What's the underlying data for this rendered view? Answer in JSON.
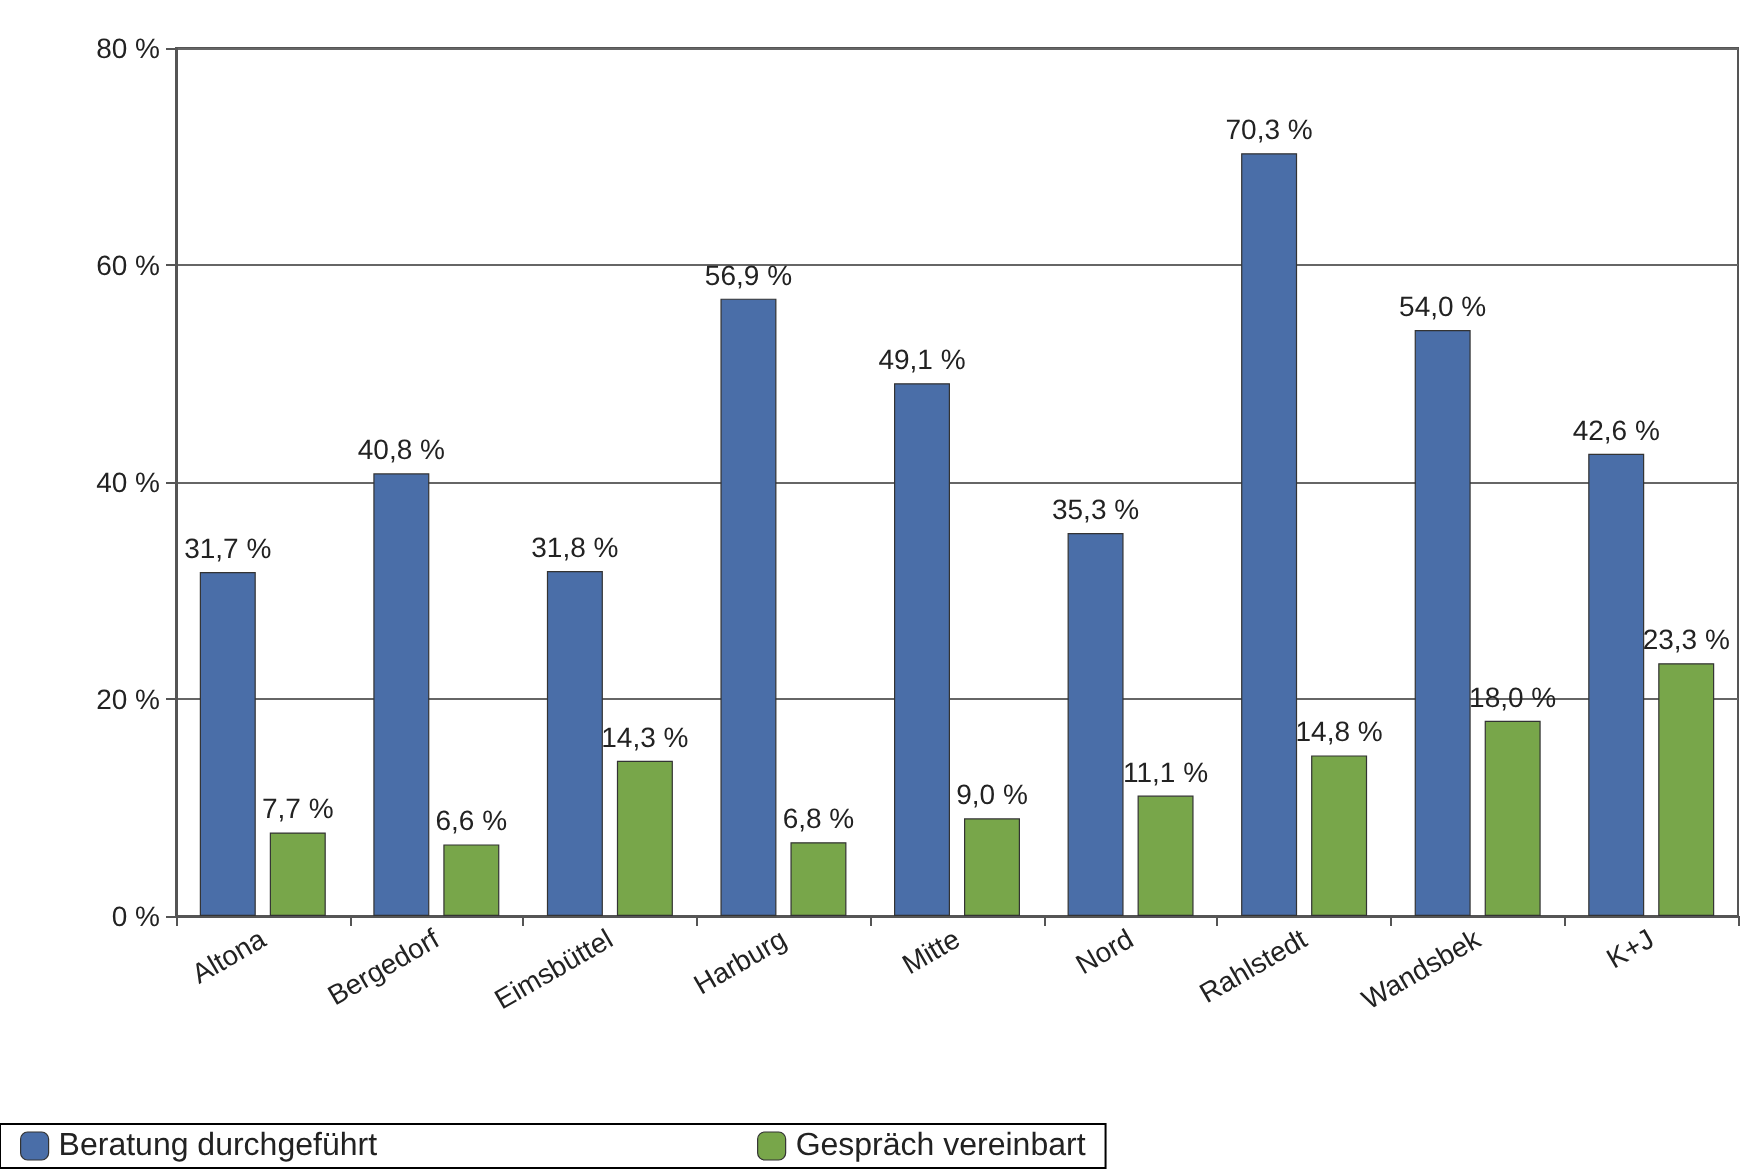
{
  "chart_data": {
    "type": "bar",
    "categories": [
      "Altona",
      "Bergedorf",
      "Eimsbüttel",
      "Harburg",
      "Mitte",
      "Nord",
      "Rahlstedt",
      "Wandsbek",
      "K+J"
    ],
    "series": [
      {
        "name": "Beratung durchgeführt",
        "color": "#4a6ea8",
        "values": [
          31.7,
          40.8,
          31.8,
          56.9,
          49.1,
          35.3,
          70.3,
          54.0,
          42.6
        ],
        "value_labels": [
          "31,7 %",
          "40,8 %",
          "31,8 %",
          "56,9 %",
          "49,1 %",
          "35,3 %",
          "70,3 %",
          "54,0 %",
          "42,6 %"
        ]
      },
      {
        "name": "Gespräch vereinbart",
        "color": "#78a64a",
        "values": [
          7.7,
          6.6,
          14.3,
          6.8,
          9.0,
          11.1,
          14.8,
          18.0,
          23.3
        ],
        "value_labels": [
          "7,7 %",
          "6,6 %",
          "14,3 %",
          "6,8 %",
          "9,0 %",
          "11,1 %",
          "14,8 %",
          "18,0 %",
          "23,3 %"
        ]
      }
    ],
    "ylim": [
      0,
      80
    ],
    "yticks": [
      {
        "value": 0,
        "label": "0 %"
      },
      {
        "value": 20,
        "label": "20 %"
      },
      {
        "value": 40,
        "label": "40 %"
      },
      {
        "value": 60,
        "label": "60 %"
      },
      {
        "value": 80,
        "label": "80 %"
      }
    ],
    "grid": "y",
    "legend": "bottom"
  }
}
